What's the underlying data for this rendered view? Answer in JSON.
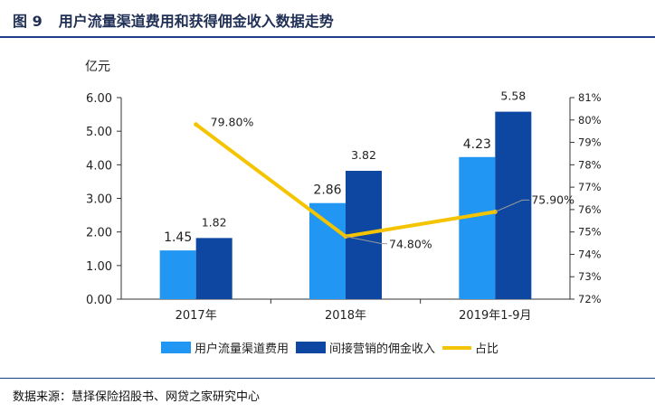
{
  "figure": {
    "number": "图 9",
    "title": "用户流量渠道费用和获得佣金收入数据走势",
    "source": "数据来源：慧择保险招股书、网贷之家研究中心"
  },
  "chart_data": {
    "type": "bar",
    "title": "用户流量渠道费用和获得佣金收入数据走势",
    "ylabel": "亿元",
    "categories": [
      "2017年",
      "2018年",
      "2019年1-9月"
    ],
    "ylim": [
      0,
      6
    ],
    "yticks": [
      "0.00",
      "1.00",
      "2.00",
      "3.00",
      "4.00",
      "5.00",
      "6.00"
    ],
    "y2lim": [
      72,
      81
    ],
    "y2ticks": [
      "72%",
      "73%",
      "74%",
      "75%",
      "76%",
      "77%",
      "78%",
      "79%",
      "80%",
      "81%"
    ],
    "series": [
      {
        "name": "用户流量渠道费用",
        "type": "bar",
        "axis": "left",
        "color": "#2196f3",
        "values": [
          1.45,
          2.86,
          4.23
        ],
        "labels": [
          "1.45",
          "2.86",
          "4.23"
        ]
      },
      {
        "name": "间接营销的佣金收入",
        "type": "bar",
        "axis": "left",
        "color": "#0d47a1",
        "values": [
          1.82,
          3.82,
          5.58
        ],
        "labels": [
          "1.82",
          "3.82",
          "5.58"
        ]
      },
      {
        "name": "占比",
        "type": "line",
        "axis": "right",
        "color": "#f5c400",
        "values": [
          79.8,
          74.8,
          75.9
        ],
        "labels": [
          "79.80%",
          "74.80%",
          "75.90%"
        ]
      }
    ],
    "legend_position": "bottom",
    "grid": false
  }
}
